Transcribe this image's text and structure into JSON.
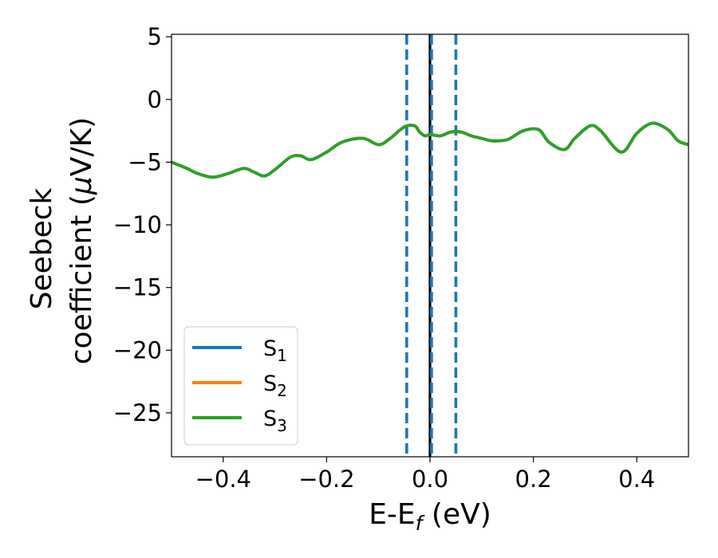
{
  "chart_data": {
    "type": "line",
    "xlabel": {
      "main": "E-E",
      "sub": "f",
      "suffix": " (eV)"
    },
    "ylabel": {
      "line1": "Seebeck",
      "line2_pre": "coefficient  (",
      "line2_mu": "μ",
      "line2_post": "V/K)"
    },
    "xlim": [
      -0.5,
      0.5
    ],
    "ylim": [
      -28.5,
      5.2
    ],
    "xticks": [
      -0.4,
      -0.2,
      0.0,
      0.2,
      0.4
    ],
    "xtick_labels": [
      "−0.4",
      "−0.2",
      "0.0",
      "0.2",
      "0.4"
    ],
    "yticks": [
      5,
      0,
      -5,
      -10,
      -15,
      -20,
      -25
    ],
    "ytick_labels": [
      "5",
      "0",
      "−5",
      "−10",
      "−15",
      "−20",
      "−25"
    ],
    "vlines": [
      {
        "x": -0.045,
        "style": "dashed",
        "color": "#1f77b4"
      },
      {
        "x": 0.0,
        "style": "solid",
        "color": "#000000"
      },
      {
        "x": 0.003,
        "style": "dashed",
        "color": "#1f77b4"
      },
      {
        "x": 0.05,
        "style": "dashed",
        "color": "#1f77b4"
      }
    ],
    "x": [
      -0.5,
      -0.47,
      -0.45,
      -0.42,
      -0.39,
      -0.36,
      -0.34,
      -0.32,
      -0.3,
      -0.27,
      -0.25,
      -0.23,
      -0.2,
      -0.17,
      -0.13,
      -0.1,
      -0.08,
      -0.05,
      -0.03,
      -0.02,
      -0.01,
      0.0,
      0.02,
      0.04,
      0.06,
      0.08,
      0.1,
      0.12,
      0.15,
      0.18,
      0.21,
      0.23,
      0.26,
      0.28,
      0.31,
      0.33,
      0.37,
      0.4,
      0.43,
      0.46,
      0.48,
      0.5
    ],
    "series": [
      {
        "name": "S",
        "sub": "1",
        "color": "#1f77b4",
        "values": [
          -5.0,
          -5.5,
          -5.9,
          -6.2,
          -5.9,
          -5.5,
          -5.8,
          -6.1,
          -5.6,
          -4.6,
          -4.5,
          -4.8,
          -4.2,
          -3.4,
          -3.1,
          -3.6,
          -3.2,
          -2.2,
          -2.1,
          -2.6,
          -2.9,
          -2.8,
          -2.9,
          -2.6,
          -2.6,
          -2.9,
          -3.1,
          -3.3,
          -3.2,
          -2.5,
          -2.4,
          -3.4,
          -4.0,
          -3.1,
          -2.1,
          -2.5,
          -4.2,
          -2.7,
          -1.9,
          -2.4,
          -3.3,
          -3.6
        ]
      },
      {
        "name": "S",
        "sub": "2",
        "color": "#ff7f0e",
        "values": [
          -5.0,
          -5.5,
          -5.9,
          -6.2,
          -5.9,
          -5.5,
          -5.8,
          -6.1,
          -5.6,
          -4.6,
          -4.5,
          -4.8,
          -4.2,
          -3.4,
          -3.1,
          -3.6,
          -3.2,
          -2.2,
          -2.1,
          -2.6,
          -2.9,
          -2.8,
          -2.9,
          -2.6,
          -2.6,
          -2.9,
          -3.1,
          -3.3,
          -3.2,
          -2.5,
          -2.4,
          -3.4,
          -4.0,
          -3.1,
          -2.1,
          -2.5,
          -4.2,
          -2.7,
          -1.9,
          -2.4,
          -3.3,
          -3.6
        ]
      },
      {
        "name": "S",
        "sub": "3",
        "color": "#2ca02c",
        "values": [
          -5.0,
          -5.5,
          -5.9,
          -6.2,
          -5.9,
          -5.5,
          -5.8,
          -6.1,
          -5.6,
          -4.6,
          -4.5,
          -4.8,
          -4.2,
          -3.4,
          -3.1,
          -3.6,
          -3.2,
          -2.2,
          -2.1,
          -2.6,
          -2.9,
          -2.8,
          -2.9,
          -2.6,
          -2.6,
          -2.9,
          -3.1,
          -3.3,
          -3.2,
          -2.5,
          -2.4,
          -3.4,
          -4.0,
          -3.1,
          -2.1,
          -2.5,
          -4.2,
          -2.7,
          -1.9,
          -2.4,
          -3.3,
          -3.6
        ]
      }
    ],
    "legend_position": "lower-left"
  }
}
